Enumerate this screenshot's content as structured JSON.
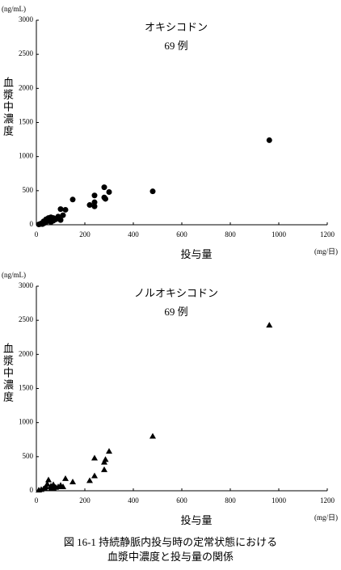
{
  "chart_data": [
    {
      "type": "scatter",
      "annotations": [
        "オキシコドン",
        "69 例"
      ],
      "y_label": "血漿中濃度",
      "y_unit": "(ng/mL)",
      "x_label": "投与量",
      "x_unit": "(mg/日)",
      "marker": "circle",
      "color": "#000000",
      "series": [
        {
          "x": [
            961,
            480,
            300,
            280,
            285,
            280,
            240,
            240,
            240,
            220,
            150,
            120,
            100,
            110,
            90,
            80,
            70,
            60,
            55,
            50,
            45,
            40,
            35,
            30,
            25,
            60,
            70,
            100,
            50,
            40,
            30,
            20,
            15,
            10
          ],
          "values": [
            1240,
            490,
            480,
            550,
            380,
            400,
            430,
            330,
            270,
            290,
            370,
            220,
            230,
            140,
            120,
            80,
            100,
            110,
            90,
            70,
            60,
            40,
            30,
            20,
            10,
            40,
            60,
            70,
            100,
            80,
            50,
            20,
            10,
            5
          ]
        }
      ],
      "xlim": [
        0,
        1200
      ],
      "xticks": [
        0,
        200,
        400,
        600,
        800,
        1000,
        1200
      ],
      "ylim": [
        0,
        3000
      ],
      "yticks": [
        0,
        500,
        1000,
        1500,
        2000,
        2500,
        3000
      ]
    },
    {
      "type": "scatter",
      "annotations": [
        "ノルオキシコドン",
        "69 例"
      ],
      "y_label": "血漿中濃度",
      "y_unit": "(ng/mL)",
      "x_label": "投与量",
      "x_unit": "(mg/日)",
      "marker": "triangle",
      "color": "#000000",
      "series": [
        {
          "x": [
            961,
            480,
            300,
            285,
            280,
            280,
            240,
            240,
            220,
            150,
            120,
            100,
            90,
            80,
            70,
            60,
            50,
            45,
            40,
            35,
            30,
            20,
            10,
            60,
            70,
            110
          ],
          "values": [
            2430,
            800,
            580,
            460,
            420,
            310,
            480,
            220,
            150,
            130,
            180,
            80,
            60,
            50,
            90,
            70,
            160,
            100,
            60,
            40,
            30,
            20,
            10,
            30,
            40,
            60
          ]
        }
      ],
      "xlim": [
        0,
        1200
      ],
      "xticks": [
        0,
        200,
        400,
        600,
        800,
        1000,
        1200
      ],
      "ylim": [
        0,
        3000
      ],
      "yticks": [
        0,
        500,
        1000,
        1500,
        2000,
        2500,
        3000
      ]
    }
  ],
  "caption": [
    "図 16-1 持続静脈内投与時の定常状態における",
    "血漿中濃度と投与量の関係"
  ]
}
